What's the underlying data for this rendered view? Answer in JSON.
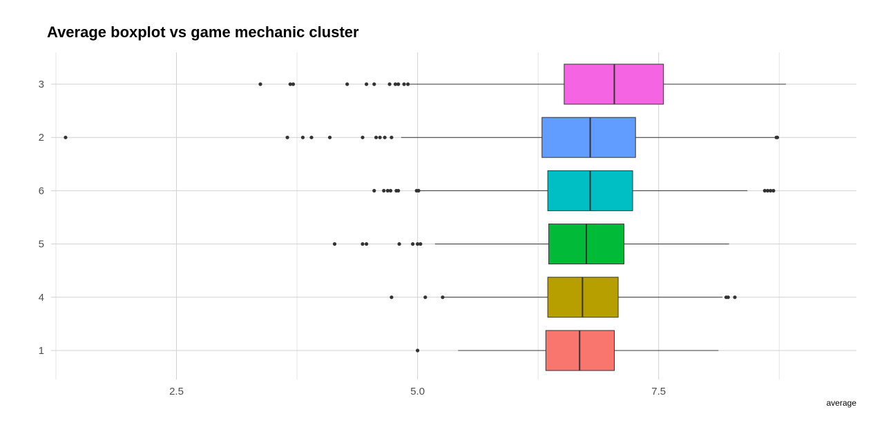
{
  "chart_data": {
    "type": "boxplot",
    "orientation": "horizontal",
    "title": "Average boxplot vs game mechanic cluster",
    "xlabel": "average",
    "ylabel": "",
    "xlim": [
      1.2,
      9.55
    ],
    "x_ticks": [
      2.5,
      5.0,
      7.5
    ],
    "x_tick_labels": [
      "2.5",
      "5.0",
      "7.5"
    ],
    "grid": true,
    "legend": "none",
    "categories": [
      "3",
      "2",
      "6",
      "5",
      "4",
      "1"
    ],
    "series": [
      {
        "category": "3",
        "color": "#F564E3",
        "whisker_low": 4.92,
        "q1": 6.52,
        "median": 7.04,
        "q3": 7.55,
        "whisker_high": 8.82,
        "outliers": [
          3.37,
          3.68,
          3.71,
          4.27,
          4.47,
          4.55,
          4.71,
          4.77,
          4.8,
          4.86,
          4.9
        ]
      },
      {
        "category": "2",
        "color": "#619CFF",
        "whisker_low": 4.83,
        "q1": 6.29,
        "median": 6.79,
        "q3": 7.26,
        "whisker_high": 8.7,
        "outliers": [
          1.35,
          3.65,
          3.81,
          3.9,
          4.09,
          4.43,
          4.57,
          4.61,
          4.66,
          4.73,
          8.72,
          8.73
        ]
      },
      {
        "category": "6",
        "color": "#00BFC4",
        "whisker_low": 5.02,
        "q1": 6.35,
        "median": 6.79,
        "q3": 7.23,
        "whisker_high": 8.42,
        "outliers": [
          4.55,
          4.65,
          4.69,
          4.72,
          4.78,
          4.8,
          4.99,
          5.01,
          8.6,
          8.63,
          8.66,
          8.69
        ]
      },
      {
        "category": "5",
        "color": "#00BA38",
        "whisker_low": 5.18,
        "q1": 6.36,
        "median": 6.75,
        "q3": 7.14,
        "whisker_high": 8.23,
        "outliers": [
          4.14,
          4.43,
          4.47,
          4.81,
          4.95,
          5.0,
          5.03
        ]
      },
      {
        "category": "4",
        "color": "#B79F00",
        "whisker_low": 5.27,
        "q1": 6.35,
        "median": 6.71,
        "q3": 7.08,
        "whisker_high": 8.16,
        "outliers": [
          4.73,
          5.08,
          5.26,
          8.2,
          8.22,
          8.29
        ]
      },
      {
        "category": "1",
        "color": "#F8766D",
        "whisker_low": 5.42,
        "q1": 6.33,
        "median": 6.68,
        "q3": 7.04,
        "whisker_high": 8.12,
        "outliers": [
          5.0
        ]
      }
    ]
  }
}
